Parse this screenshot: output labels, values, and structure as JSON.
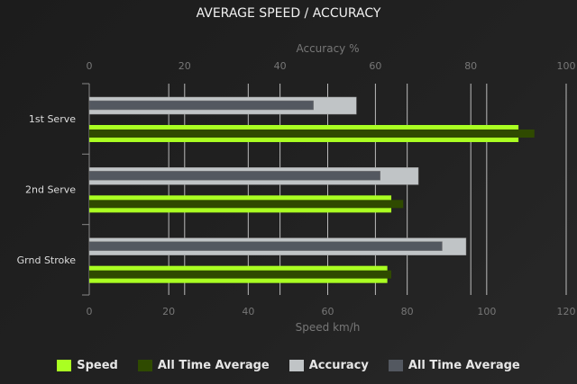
{
  "chart_data": {
    "type": "bar",
    "orientation": "horizontal",
    "title": "AVERAGE SPEED / ACCURACY",
    "categories": [
      "1st Serve",
      "2nd Serve",
      "Grnd Stroke"
    ],
    "top_axis": {
      "label": "Accuracy %",
      "range": [
        0,
        100
      ],
      "ticks": [
        0,
        20,
        40,
        60,
        80,
        100
      ]
    },
    "bottom_axis": {
      "label": "Speed km/h",
      "range": [
        0,
        120
      ],
      "ticks": [
        0,
        20,
        40,
        60,
        80,
        100,
        120
      ]
    },
    "grid": true,
    "legend_position": "bottom",
    "series": [
      {
        "name": "Speed",
        "axis": "bottom",
        "color": "#aaff22",
        "values": [
          108,
          76,
          75
        ]
      },
      {
        "name": "All Time Average",
        "axis": "bottom",
        "color": "#2f4a00",
        "values": [
          112,
          79,
          76
        ]
      },
      {
        "name": "Accuracy",
        "axis": "top",
        "color": "#c0c4c6",
        "values": [
          56,
          69,
          79
        ]
      },
      {
        "name": "All Time Average",
        "axis": "top",
        "color": "#535860",
        "values": [
          47,
          61,
          74
        ]
      }
    ]
  }
}
